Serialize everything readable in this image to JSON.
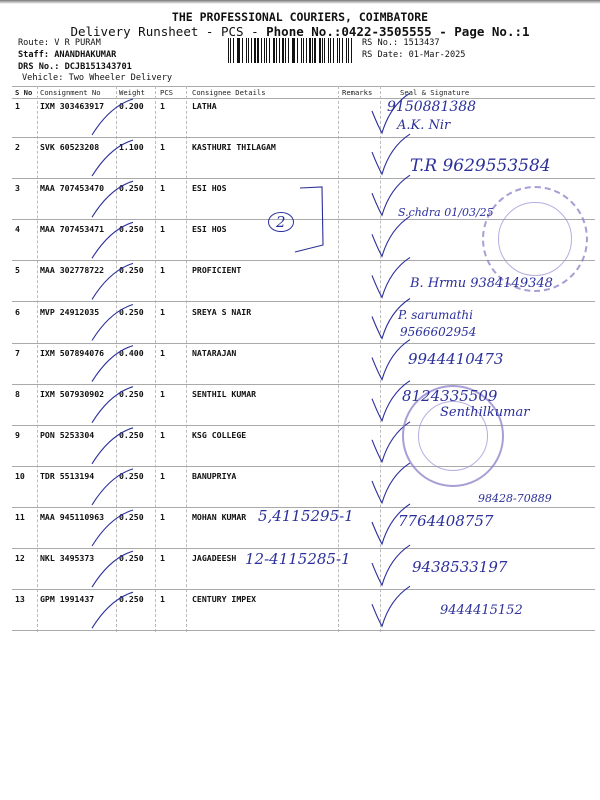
{
  "header": {
    "company": "THE PROFESSIONAL COURIERS, COIMBATORE",
    "subtitle_prefix": "Delivery Runsheet - PCS - ",
    "subtitle_phone": "Phone No.:0422-3505555 - Page No.:1",
    "route": "Route: V R PURAM",
    "staff": "Staff: ANANDHAKUMAR",
    "drs": "DRS No.: DCJB151343701",
    "vehicle": "Vehicle: Two Wheeler Delivery",
    "rs_no": "RS No.: 1513437",
    "rs_date": "RS Date: 01-Mar-2025"
  },
  "table": {
    "columns": [
      "S No",
      "Consignment No",
      "Weight",
      "PCS",
      "Consignee Details",
      "Remarks",
      "Seal & Signature"
    ],
    "rows": [
      {
        "sno": "1",
        "consignment": "IXM 303463917",
        "weight": "0.200",
        "pcs": "1",
        "consignee": "LATHA"
      },
      {
        "sno": "2",
        "consignment": "SVK 60523208",
        "weight": "1.100",
        "pcs": "1",
        "consignee": "KASTHURI THILAGAM"
      },
      {
        "sno": "3",
        "consignment": "MAA 707453470",
        "weight": "0.250",
        "pcs": "1",
        "consignee": "ESI HOS"
      },
      {
        "sno": "4",
        "consignment": "MAA 707453471",
        "weight": "0.250",
        "pcs": "1",
        "consignee": "ESI HOS"
      },
      {
        "sno": "5",
        "consignment": "MAA 302778722",
        "weight": "0.250",
        "pcs": "1",
        "consignee": "PROFICIENT"
      },
      {
        "sno": "6",
        "consignment": "MVP 24912035",
        "weight": "0.250",
        "pcs": "1",
        "consignee": "SREYA S NAIR"
      },
      {
        "sno": "7",
        "consignment": "IXM 507894076",
        "weight": "0.400",
        "pcs": "1",
        "consignee": "NATARAJAN"
      },
      {
        "sno": "8",
        "consignment": "IXM 507930902",
        "weight": "0.250",
        "pcs": "1",
        "consignee": "SENTHIL KUMAR"
      },
      {
        "sno": "9",
        "consignment": "PON 5253304",
        "weight": "0.250",
        "pcs": "1",
        "consignee": "KSG COLLEGE"
      },
      {
        "sno": "10",
        "consignment": "TDR 5513194",
        "weight": "0.250",
        "pcs": "1",
        "consignee": "BANUPRIYA"
      },
      {
        "sno": "11",
        "consignment": "MAA 945110963",
        "weight": "0.250",
        "pcs": "1",
        "consignee": "MOHAN KUMAR"
      },
      {
        "sno": "12",
        "consignment": "NKL 3495373",
        "weight": "0.250",
        "pcs": "1",
        "consignee": "JAGADEESH"
      },
      {
        "sno": "13",
        "consignment": "GPM 1991437",
        "weight": "0.250",
        "pcs": "1",
        "consignee": "CENTURY IMPEX"
      }
    ]
  },
  "handwriting": {
    "r1_phone": "9150881388",
    "r1_name": "A.K. Nir",
    "r2": "T.R 9629553584",
    "r3": "S.chdra 01/03/25",
    "r4_circle": "2",
    "r5": "B. Hrmu 9384149348",
    "r6_name": "P. sarumathi",
    "r6_phone": "9566602954",
    "r7": "9944410473",
    "r8_phone": "8124335509",
    "r8_name": "Senthilkumar",
    "r10": "98428-70889",
    "r11_note": "5,4115295-1",
    "r11_phone": "7764408757",
    "r12_note": "12-4115285-1",
    "r12_phone": "9438533197",
    "r13_phone": "9444415152"
  },
  "colors": {
    "ink": "#2b2f9a",
    "stamp": "#8a7fc8"
  }
}
